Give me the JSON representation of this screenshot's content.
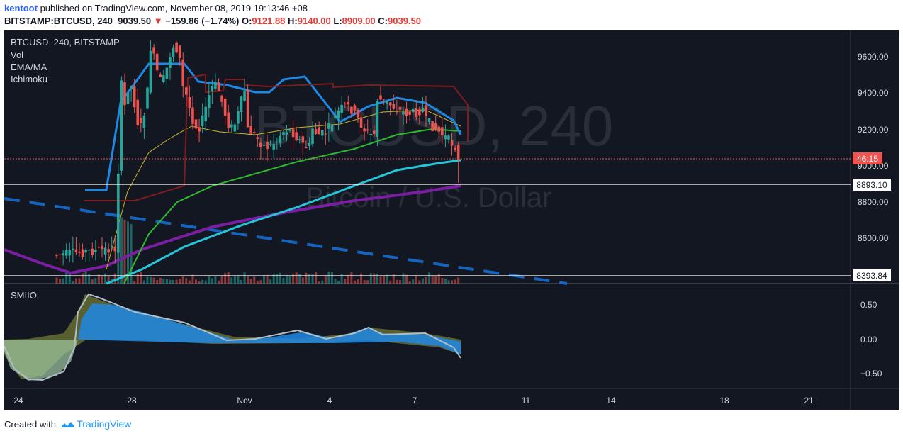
{
  "header": {
    "username": "kentoot",
    "published_text": "published on TradingView.com, November 08, 2019 19:13:46 +08",
    "symbol": "BITSTAMP:BTCUSD, 240",
    "last": "9039.50",
    "change_arrow": "▼",
    "change": "−159.86 (−1.74%)",
    "o_label": "O:",
    "o_value": "9121.88",
    "h_label": "H:",
    "h_value": "9140.00",
    "l_label": "L:",
    "l_value": "8909.00",
    "c_label": "C:",
    "c_value": "9039.50"
  },
  "legend": {
    "symbol": "BTCUSD, 240, BITSTAMP",
    "indicators": [
      "Vol",
      "EMA/MA",
      "Ichimoku"
    ],
    "oscillator": "SMIIO"
  },
  "watermark": {
    "main": "BTCUSD, 240",
    "sub": "Bitcoin / U.S. Dollar"
  },
  "price_axis": {
    "ticks": [
      "9600.00",
      "9400.00",
      "9200.00",
      "9000.00",
      "8800.00",
      "8600.00"
    ],
    "countdown": "46:15",
    "level_upper": "8893.10",
    "level_lower": "8393.84"
  },
  "osc_axis": {
    "ticks": [
      "0.50",
      "0.00",
      "−0.50"
    ]
  },
  "time_axis": {
    "ticks": [
      "24",
      "28",
      "Nov",
      "4",
      "7",
      "11",
      "14",
      "18",
      "21"
    ]
  },
  "colors": {
    "background": "#131722",
    "candle_up": "#26a69a",
    "candle_down": "#ef5350",
    "ema_fast": "#c8b62c",
    "ema_mid": "#2eb82e",
    "ema_slow": "#26c6da",
    "ma_long": "#7b1fa2",
    "kijun": "#1e88e5",
    "cloud_edge": "#7f1d1d",
    "trend_line": "#1565c0",
    "countdown_bg": "#ef5350"
  },
  "footer": {
    "created_with": "Created with",
    "brand": "TradingView"
  }
}
